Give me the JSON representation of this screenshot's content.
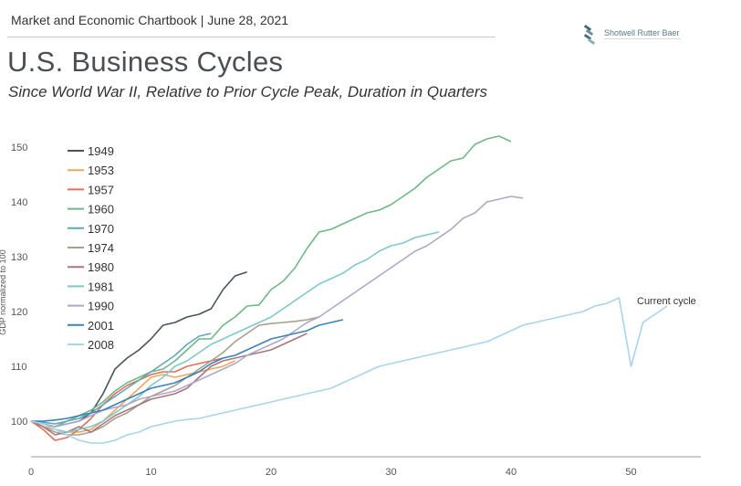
{
  "header": {
    "line": "Market and Economic Chartbook | June 28, 2021",
    "title": "U.S. Business Cycles",
    "subtitle": "Since World War II, Relative to Prior Cycle Peak, Duration in Quarters"
  },
  "logo": {
    "text": "Shotwell Rutter Baer",
    "icon": "stacked-bars-logo-icon"
  },
  "chart_data": {
    "type": "line",
    "title": "U.S. Business Cycles",
    "subtitle": "Since World War II, Relative to Prior Cycle Peak, Duration in Quarters",
    "xlabel": "",
    "ylabel": "GDP normalized to 100",
    "xlim": [
      0,
      56
    ],
    "ylim": [
      92,
      153
    ],
    "xticks": [
      "0",
      "10",
      "20",
      "30",
      "40",
      "50"
    ],
    "yticks": [
      "100",
      "110",
      "120",
      "130",
      "140",
      "150"
    ],
    "grid": false,
    "legend": "top-left",
    "annotations": [
      {
        "text": "Current cycle"
      }
    ],
    "series": [
      {
        "name": "1949",
        "color": "#4a525a",
        "values": [
          100,
          99.5,
          99,
          99.5,
          100,
          101.5,
          105,
          109.5,
          111.5,
          113,
          115,
          117.5,
          118,
          119,
          119.5,
          120.5,
          124,
          126.5,
          127.2
        ]
      },
      {
        "name": "1953",
        "color": "#f2a55e",
        "values": [
          100,
          99,
          98.5,
          98,
          98,
          98.5,
          100,
          102,
          104,
          106,
          108,
          108.5,
          108,
          108.5,
          109,
          109.5,
          110,
          111
        ]
      },
      {
        "name": "1957",
        "color": "#e0705a",
        "values": [
          100,
          98.5,
          96.5,
          97,
          98.5,
          100.5,
          103,
          105,
          106.5,
          107.5,
          108.5,
          109,
          109,
          110,
          110.5,
          111,
          111.5
        ]
      },
      {
        "name": "1960",
        "color": "#6fb883",
        "values": [
          100,
          99.5,
          99,
          100,
          101,
          102,
          103.5,
          105.5,
          107,
          108,
          109,
          109.5,
          111,
          113,
          115,
          115,
          117.5,
          119,
          121,
          121.2,
          124,
          125.5,
          128,
          131.5,
          134.5,
          135,
          136,
          137,
          138,
          138.5,
          139.5,
          141,
          142.5,
          144.5,
          146,
          147.5,
          148,
          150.5,
          151.5,
          152,
          151
        ]
      },
      {
        "name": "1970",
        "color": "#5fa9b8",
        "values": [
          100,
          99.8,
          99.5,
          100,
          100.5,
          101.5,
          103,
          104.5,
          106,
          107.5,
          109,
          110.5,
          112,
          114,
          115.5,
          116
        ]
      },
      {
        "name": "1974",
        "color": "#a89f8e",
        "values": [
          100,
          99,
          98,
          97.5,
          97.5,
          98,
          99,
          100.5,
          101.5,
          103,
          104.5,
          105.5,
          106.5,
          108,
          109.5,
          111,
          112.5,
          114.5,
          116,
          117.5,
          117.8,
          118,
          118.2,
          118.5,
          119
        ]
      },
      {
        "name": "1980",
        "color": "#a8787c",
        "values": [
          100,
          99,
          97.5,
          98,
          99,
          98,
          99.5,
          101,
          102,
          103,
          104,
          104.5,
          105,
          106,
          108,
          110,
          111,
          111.5,
          112,
          112.5,
          113,
          114,
          115,
          116
        ]
      },
      {
        "name": "1981",
        "color": "#7fc8cc",
        "values": [
          100,
          99.5,
          98.5,
          98,
          98.5,
          99,
          100,
          101.5,
          103,
          104.5,
          106.5,
          108,
          110,
          111,
          112.5,
          114,
          115,
          116,
          117,
          118,
          119,
          120.5,
          122,
          123.5,
          125,
          126,
          127,
          128.5,
          129.5,
          131,
          132,
          132.5,
          133.5,
          134,
          134.5
        ]
      },
      {
        "name": "1990",
        "color": "#b0a8c8",
        "values": [
          100,
          99.5,
          99,
          99.5,
          100,
          101,
          102,
          102.5,
          103,
          104,
          104.5,
          105,
          105.5,
          106.5,
          107.5,
          108.5,
          109.5,
          110.5,
          112,
          113,
          114,
          115,
          116.5,
          118,
          119,
          120.5,
          122,
          123.5,
          125,
          126.5,
          128,
          129.5,
          131,
          132,
          133.5,
          135,
          137,
          138,
          140,
          140.5,
          141,
          140.7
        ]
      },
      {
        "name": "2001",
        "color": "#3a82b8",
        "values": [
          100,
          100,
          100.2,
          100.5,
          101,
          101.5,
          102,
          103,
          104,
          105,
          106,
          106.5,
          107,
          108,
          109,
          110.5,
          111.5,
          112,
          113,
          114,
          115,
          115.5,
          116,
          116.5,
          117.5,
          118,
          118.5
        ]
      },
      {
        "name": "2008",
        "color": "#a8d4ec",
        "values": [
          100,
          99.5,
          98.5,
          97.5,
          96.5,
          96,
          96,
          96.5,
          97.5,
          98,
          99,
          99.5,
          100,
          100.3,
          100.5,
          101,
          101.5,
          102,
          102.5,
          103,
          103.5,
          104,
          104.5,
          105,
          105.5,
          106,
          107,
          108,
          109,
          110,
          110.5,
          111,
          111.5,
          112,
          112.5,
          113,
          113.5,
          114,
          114.5,
          115.5,
          116.5,
          117.5,
          118,
          118.5,
          119,
          119.5,
          120,
          121,
          121.5,
          122.5,
          110,
          118,
          119.5,
          121
        ]
      }
    ]
  }
}
